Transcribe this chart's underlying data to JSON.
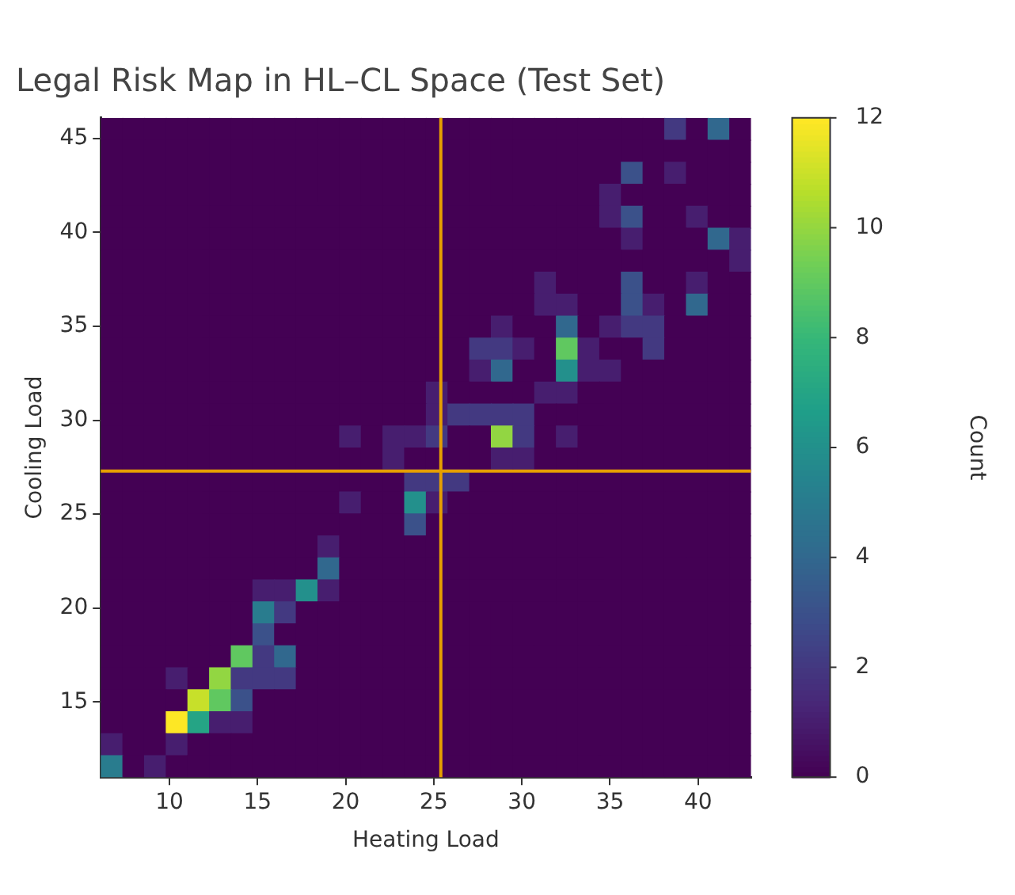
{
  "chart_data": {
    "type": "heatmap",
    "title": "Legal Risk Map in HL–CL Space (Test Set)",
    "xlabel": "Heating Load",
    "ylabel": "Cooling Load",
    "clabel": "Count",
    "xlim": [
      6.1,
      43.0
    ],
    "ylim": [
      11.0,
      46.1
    ],
    "xticks": [
      10,
      15,
      20,
      25,
      30,
      35,
      40
    ],
    "yticks": [
      15,
      20,
      25,
      30,
      35,
      40,
      45
    ],
    "clim": [
      0,
      12
    ],
    "cticks": [
      0,
      2,
      4,
      6,
      8,
      10,
      12
    ],
    "ref_lines": [
      {
        "axis": "x",
        "value": 25.4,
        "color": "#e69f00"
      },
      {
        "axis": "y",
        "value": 27.3,
        "color": "#e69f00"
      }
    ],
    "cells": [
      [
        0,
        0,
        0,
        0,
        0,
        0,
        0,
        0,
        0,
        0,
        0,
        0,
        0,
        0,
        0,
        0,
        0,
        0,
        0,
        0,
        0,
        0,
        0,
        0,
        0,
        0,
        2,
        0,
        4,
        0
      ],
      [
        0,
        0,
        0,
        0,
        0,
        0,
        0,
        0,
        0,
        0,
        0,
        0,
        0,
        0,
        0,
        0,
        0,
        0,
        0,
        0,
        0,
        0,
        0,
        0,
        0,
        0,
        0,
        0,
        0,
        0
      ],
      [
        0,
        0,
        0,
        0,
        0,
        0,
        0,
        0,
        0,
        0,
        0,
        0,
        0,
        0,
        0,
        0,
        0,
        0,
        0,
        0,
        0,
        0,
        0,
        0,
        3,
        0,
        1,
        0,
        0,
        0
      ],
      [
        0,
        0,
        0,
        0,
        0,
        0,
        0,
        0,
        0,
        0,
        0,
        0,
        0,
        0,
        0,
        0,
        0,
        0,
        0,
        0,
        0,
        0,
        0,
        1,
        0,
        0,
        0,
        0,
        0,
        0
      ],
      [
        0,
        0,
        0,
        0,
        0,
        0,
        0,
        0,
        0,
        0,
        0,
        0,
        0,
        0,
        0,
        0,
        0,
        0,
        0,
        0,
        0,
        0,
        0,
        1,
        3,
        0,
        0,
        1,
        0,
        0
      ],
      [
        0,
        0,
        0,
        0,
        0,
        0,
        0,
        0,
        0,
        0,
        0,
        0,
        0,
        0,
        0,
        0,
        0,
        0,
        0,
        0,
        0,
        0,
        0,
        0,
        1,
        0,
        0,
        0,
        4,
        1
      ],
      [
        0,
        0,
        0,
        0,
        0,
        0,
        0,
        0,
        0,
        0,
        0,
        0,
        0,
        0,
        0,
        0,
        0,
        0,
        0,
        0,
        0,
        0,
        0,
        0,
        0,
        0,
        0,
        0,
        0,
        1
      ],
      [
        0,
        0,
        0,
        0,
        0,
        0,
        0,
        0,
        0,
        0,
        0,
        0,
        0,
        0,
        0,
        0,
        0,
        0,
        0,
        0,
        1,
        0,
        0,
        0,
        3,
        0,
        0,
        1,
        0,
        0
      ],
      [
        0,
        0,
        0,
        0,
        0,
        0,
        0,
        0,
        0,
        0,
        0,
        0,
        0,
        0,
        0,
        0,
        0,
        0,
        0,
        0,
        1,
        1,
        0,
        0,
        3,
        1,
        0,
        4,
        0,
        0
      ],
      [
        0,
        0,
        0,
        0,
        0,
        0,
        0,
        0,
        0,
        0,
        0,
        0,
        0,
        0,
        0,
        0,
        0,
        0,
        1,
        0,
        0,
        4,
        0,
        1,
        2,
        2,
        0,
        0,
        0,
        0
      ],
      [
        0,
        0,
        0,
        0,
        0,
        0,
        0,
        0,
        0,
        0,
        0,
        0,
        0,
        0,
        0,
        0,
        0,
        2,
        2,
        1,
        0,
        9,
        1,
        0,
        0,
        2,
        0,
        0,
        0,
        0
      ],
      [
        0,
        0,
        0,
        0,
        0,
        0,
        0,
        0,
        0,
        0,
        0,
        0,
        0,
        0,
        0,
        0,
        0,
        1,
        4,
        0,
        0,
        6,
        1,
        1,
        0,
        0,
        0,
        0,
        0,
        0
      ],
      [
        0,
        0,
        0,
        0,
        0,
        0,
        0,
        0,
        0,
        0,
        0,
        0,
        0,
        0,
        0,
        1,
        0,
        0,
        0,
        0,
        1,
        1,
        0,
        0,
        0,
        0,
        0,
        0,
        0,
        0
      ],
      [
        0,
        0,
        0,
        0,
        0,
        0,
        0,
        0,
        0,
        0,
        0,
        0,
        0,
        0,
        0,
        1,
        2,
        2,
        2,
        2,
        0,
        0,
        0,
        0,
        0,
        0,
        0,
        0,
        0,
        0
      ],
      [
        0,
        0,
        0,
        0,
        0,
        0,
        0,
        0,
        0,
        0,
        0,
        1,
        0,
        1,
        1,
        2,
        0,
        0,
        10,
        2,
        0,
        1,
        0,
        0,
        0,
        0,
        0,
        0,
        0,
        0
      ],
      [
        0,
        0,
        0,
        0,
        0,
        0,
        0,
        0,
        0,
        0,
        0,
        0,
        0,
        1,
        0,
        0,
        0,
        0,
        1,
        1,
        0,
        0,
        0,
        0,
        0,
        0,
        0,
        0,
        0,
        0
      ],
      [
        0,
        0,
        0,
        0,
        0,
        0,
        0,
        0,
        0,
        0,
        0,
        0,
        0,
        0,
        2,
        2,
        2,
        0,
        0,
        0,
        0,
        0,
        0,
        0,
        0,
        0,
        0,
        0,
        0,
        0
      ],
      [
        0,
        0,
        0,
        0,
        0,
        0,
        0,
        0,
        0,
        0,
        0,
        1,
        0,
        0,
        6,
        1,
        0,
        0,
        0,
        0,
        0,
        0,
        0,
        0,
        0,
        0,
        0,
        0,
        0,
        0
      ],
      [
        0,
        0,
        0,
        0,
        0,
        0,
        0,
        0,
        0,
        0,
        0,
        0,
        0,
        0,
        3,
        0,
        0,
        0,
        0,
        0,
        0,
        0,
        0,
        0,
        0,
        0,
        0,
        0,
        0,
        0
      ],
      [
        0,
        0,
        0,
        0,
        0,
        0,
        0,
        0,
        0,
        0,
        1,
        0,
        0,
        0,
        0,
        0,
        0,
        0,
        0,
        0,
        0,
        0,
        0,
        0,
        0,
        0,
        0,
        0,
        0,
        0
      ],
      [
        0,
        0,
        0,
        0,
        0,
        0,
        0,
        0,
        0,
        0,
        4,
        0,
        0,
        0,
        0,
        0,
        0,
        0,
        0,
        0,
        0,
        0,
        0,
        0,
        0,
        0,
        0,
        0,
        0,
        0
      ],
      [
        0,
        0,
        0,
        0,
        0,
        0,
        0,
        1,
        1,
        6,
        1,
        0,
        0,
        0,
        0,
        0,
        0,
        0,
        0,
        0,
        0,
        0,
        0,
        0,
        0,
        0,
        0,
        0,
        0,
        0
      ],
      [
        0,
        0,
        0,
        0,
        0,
        0,
        0,
        5,
        2,
        0,
        0,
        0,
        0,
        0,
        0,
        0,
        0,
        0,
        0,
        0,
        0,
        0,
        0,
        0,
        0,
        0,
        0,
        0,
        0,
        0
      ],
      [
        0,
        0,
        0,
        0,
        0,
        0,
        0,
        3,
        0,
        0,
        0,
        0,
        0,
        0,
        0,
        0,
        0,
        0,
        0,
        0,
        0,
        0,
        0,
        0,
        0,
        0,
        0,
        0,
        0,
        0
      ],
      [
        0,
        0,
        0,
        0,
        0,
        0,
        9,
        2,
        4,
        0,
        0,
        0,
        0,
        0,
        0,
        0,
        0,
        0,
        0,
        0,
        0,
        0,
        0,
        0,
        0,
        0,
        0,
        0,
        0,
        0
      ],
      [
        0,
        0,
        0,
        1,
        0,
        10,
        2,
        2,
        2,
        0,
        0,
        0,
        0,
        0,
        0,
        0,
        0,
        0,
        0,
        0,
        0,
        0,
        0,
        0,
        0,
        0,
        0,
        0,
        0,
        0
      ],
      [
        0,
        0,
        0,
        0,
        11,
        9,
        3,
        0,
        0,
        0,
        0,
        0,
        0,
        0,
        0,
        0,
        0,
        0,
        0,
        0,
        0,
        0,
        0,
        0,
        0,
        0,
        0,
        0,
        0,
        0
      ],
      [
        0,
        0,
        0,
        12,
        7,
        1,
        1,
        0,
        0,
        0,
        0,
        0,
        0,
        0,
        0,
        0,
        0,
        0,
        0,
        0,
        0,
        0,
        0,
        0,
        0,
        0,
        0,
        0,
        0,
        0
      ],
      [
        1,
        0,
        0,
        1,
        0,
        0,
        0,
        0,
        0,
        0,
        0,
        0,
        0,
        0,
        0,
        0,
        0,
        0,
        0,
        0,
        0,
        0,
        0,
        0,
        0,
        0,
        0,
        0,
        0,
        0
      ],
      [
        5,
        0,
        1,
        0,
        0,
        0,
        0,
        0,
        0,
        0,
        0,
        0,
        0,
        0,
        0,
        0,
        0,
        0,
        0,
        0,
        0,
        0,
        0,
        0,
        0,
        0,
        0,
        0,
        0,
        0
      ]
    ]
  }
}
